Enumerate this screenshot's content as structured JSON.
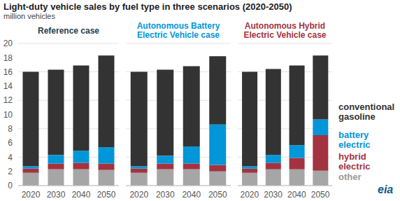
{
  "title": "Light-duty vehicle sales by fuel type in three scenarios (2020-2050)",
  "subtitle": "million vehicles",
  "logo": "eia",
  "chart_data": [
    {
      "type": "bar",
      "title": "Reference case",
      "stacked": true,
      "grid": true,
      "categories": [
        "2020",
        "2030",
        "2040",
        "2050"
      ],
      "ylim": [
        0,
        20
      ],
      "yticks": [
        0,
        2,
        4,
        6,
        8,
        10,
        12,
        14,
        16,
        18,
        20
      ],
      "series": [
        {
          "name": "other",
          "color": "#a6a6a6",
          "values": [
            1.8,
            2.3,
            2.3,
            2.2
          ]
        },
        {
          "name": "hybrid electric",
          "color": "#a33340",
          "values": [
            0.6,
            0.8,
            0.9,
            0.9
          ]
        },
        {
          "name": "battery electric",
          "color": "#0096d7",
          "values": [
            0.3,
            1.2,
            1.7,
            2.3
          ]
        },
        {
          "name": "conventional gasoline",
          "color": "#333333",
          "values": [
            13.3,
            12.0,
            12.0,
            12.9
          ]
        }
      ]
    },
    {
      "type": "bar",
      "title": "Autonomous Battery Electric Vehicle case",
      "stacked": true,
      "grid": true,
      "tick_labels": "x",
      "categories": [
        "2020",
        "2030",
        "2040",
        "2050"
      ],
      "ylim": [
        0,
        20
      ],
      "yticks": [
        0,
        2,
        4,
        6,
        8,
        10,
        12,
        14,
        16,
        18,
        20
      ],
      "series": [
        {
          "name": "other",
          "color": "#a6a6a6",
          "values": [
            1.8,
            2.3,
            2.3,
            2.0
          ]
        },
        {
          "name": "hybrid electric",
          "color": "#a33340",
          "values": [
            0.6,
            0.8,
            0.8,
            0.9
          ]
        },
        {
          "name": "battery electric",
          "color": "#0096d7",
          "values": [
            0.3,
            1.1,
            2.4,
            5.7
          ]
        },
        {
          "name": "conventional gasoline",
          "color": "#333333",
          "values": [
            13.3,
            12.1,
            11.3,
            9.6
          ]
        }
      ]
    },
    {
      "type": "bar",
      "title": "Autonomous Hybrid Electric Vehicle case",
      "stacked": true,
      "grid": true,
      "tick_labels": "x",
      "legend": "right",
      "categories": [
        "2020",
        "2030",
        "2040",
        "2050"
      ],
      "ylim": [
        0,
        20
      ],
      "yticks": [
        0,
        2,
        4,
        6,
        8,
        10,
        12,
        14,
        16,
        18,
        20
      ],
      "series": [
        {
          "name": "other",
          "color": "#a6a6a6",
          "values": [
            1.8,
            2.3,
            2.3,
            2.1
          ]
        },
        {
          "name": "hybrid electric",
          "color": "#a33340",
          "values": [
            0.6,
            0.9,
            1.6,
            5.0
          ]
        },
        {
          "name": "battery electric",
          "color": "#0096d7",
          "values": [
            0.3,
            1.1,
            1.8,
            2.2
          ]
        },
        {
          "name": "conventional gasoline",
          "color": "#333333",
          "values": [
            13.3,
            12.1,
            11.2,
            9.0
          ]
        }
      ]
    }
  ]
}
